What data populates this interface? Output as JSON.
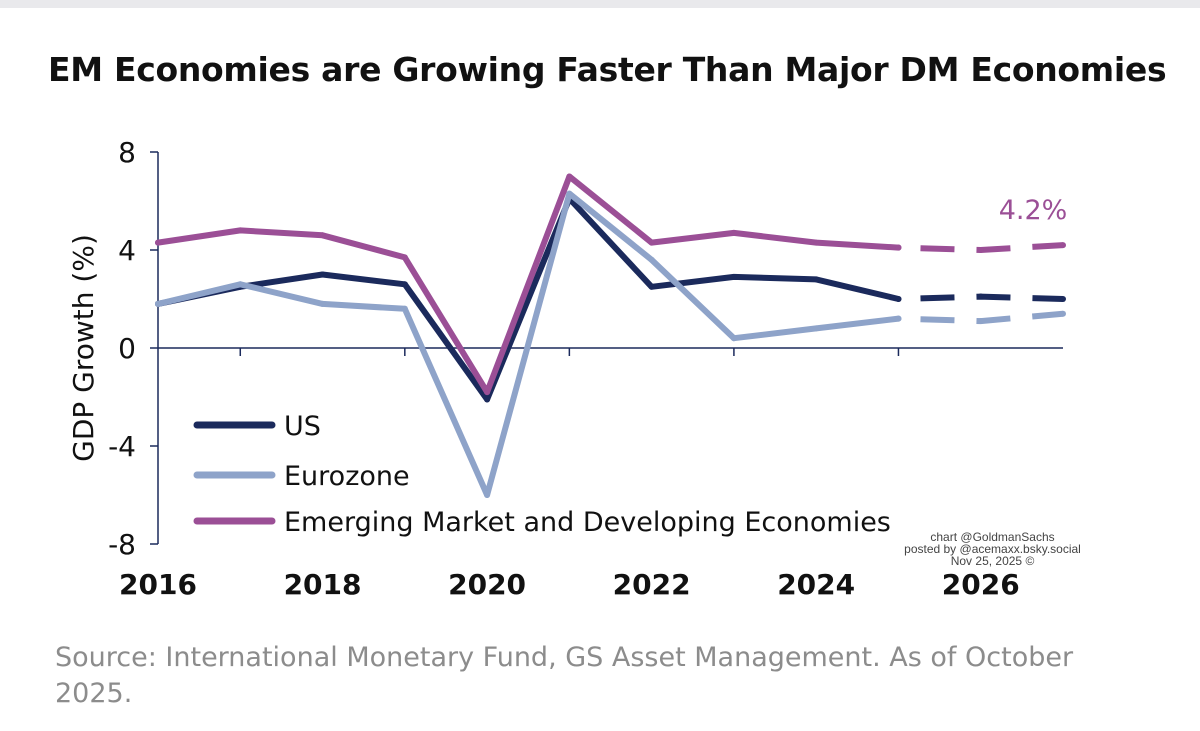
{
  "chart_data": {
    "type": "line",
    "title": "EM Economies are Growing Faster Than Major DM Economies",
    "ylabel": "GDP Growth (%)",
    "xlabel": "",
    "xlim": [
      2016,
      2027
    ],
    "ylim": [
      -8,
      8
    ],
    "x_ticks": [
      2016,
      2018,
      2020,
      2022,
      2024,
      2026
    ],
    "y_ticks": [
      8,
      4,
      0,
      -4,
      -8
    ],
    "legend_position": "bottom-left",
    "forecast_start": 2025,
    "annotation": "4.2%",
    "series": [
      {
        "name": "US",
        "color": "#1b2a5c",
        "x": [
          2016,
          2017,
          2018,
          2019,
          2020,
          2021,
          2022,
          2023,
          2024,
          2025,
          2026,
          2027
        ],
        "values": [
          1.8,
          2.5,
          3.0,
          2.6,
          -2.1,
          6.1,
          2.5,
          2.9,
          2.8,
          2.0,
          2.1,
          2.0
        ]
      },
      {
        "name": "Eurozone",
        "color": "#8ea3c9",
        "x": [
          2016,
          2017,
          2018,
          2019,
          2020,
          2021,
          2022,
          2023,
          2024,
          2025,
          2026,
          2027
        ],
        "values": [
          1.8,
          2.6,
          1.8,
          1.6,
          -6.0,
          6.3,
          3.6,
          0.4,
          0.8,
          1.2,
          1.1,
          1.4
        ]
      },
      {
        "name": "Emerging Market and Developing Economies",
        "color": "#9b4f96",
        "x": [
          2016,
          2017,
          2018,
          2019,
          2020,
          2021,
          2022,
          2023,
          2024,
          2025,
          2026,
          2027
        ],
        "values": [
          4.3,
          4.8,
          4.6,
          3.7,
          -1.8,
          7.0,
          4.3,
          4.7,
          4.3,
          4.1,
          4.0,
          4.2
        ]
      }
    ]
  },
  "source": "Source: International Monetary Fund, GS Asset Management. As of October 2025.",
  "credit": {
    "line1": "chart @GoldmanSachs",
    "line2": "posted by @acemaxx.bsky.social",
    "line3": "Nov 25, 2025 ©"
  }
}
